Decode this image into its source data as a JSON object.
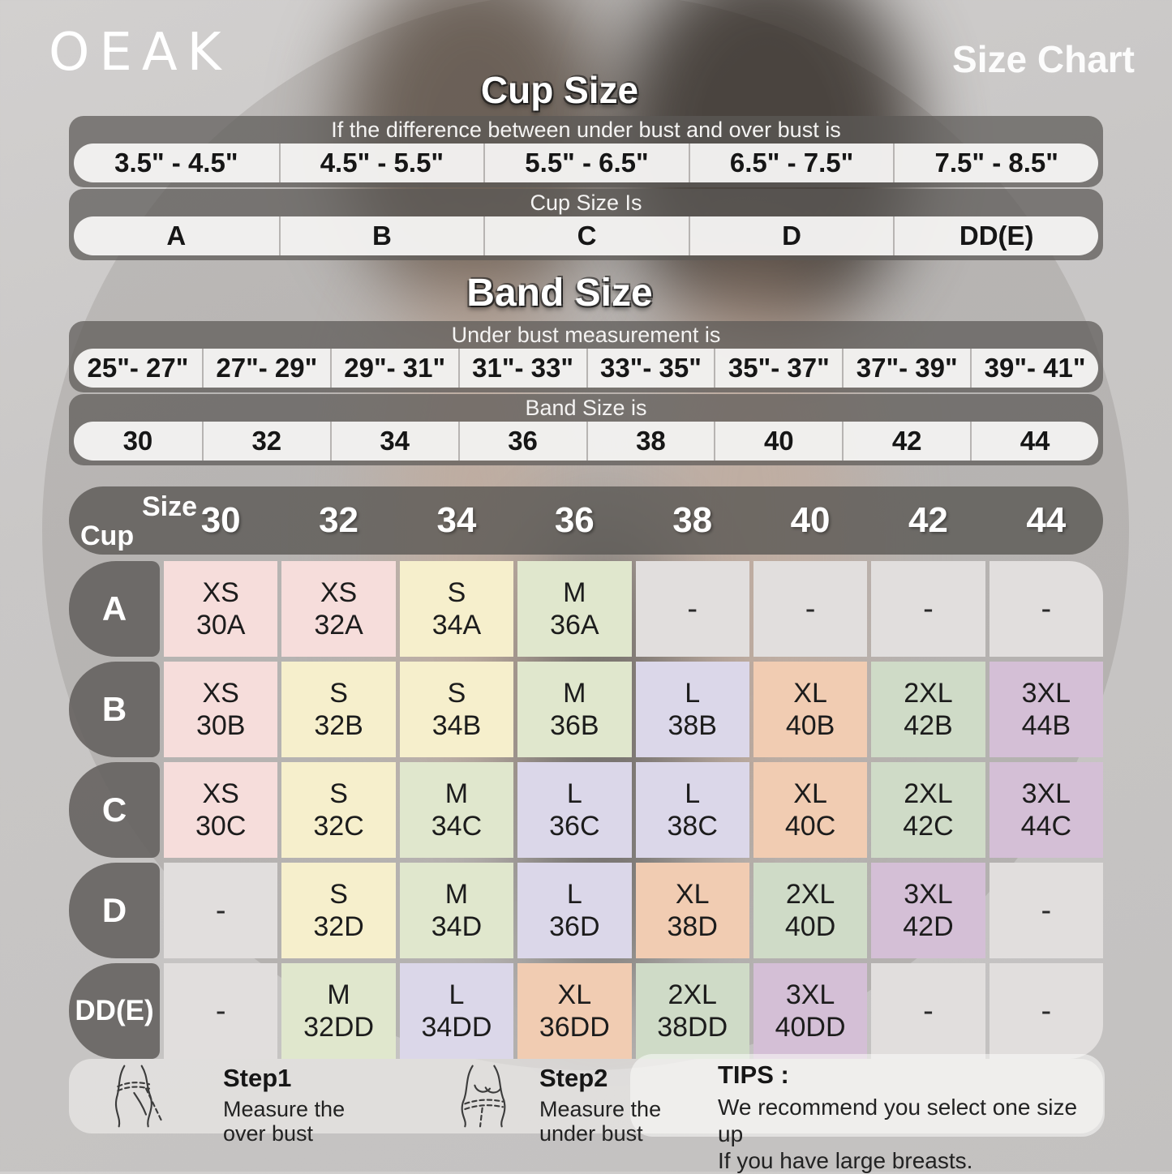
{
  "header": {
    "brand": "OEAK",
    "title": "Size Chart"
  },
  "cup_size": {
    "title": "Cup Size",
    "caption_ranges": "If the  difference between under bust and over bust is",
    "ranges": [
      "3.5\" - 4.5\"",
      "4.5\" - 5.5\"",
      "5.5\" - 6.5\"",
      "6.5\" - 7.5\"",
      "7.5\" - 8.5\""
    ],
    "caption_cups": "Cup Size Is",
    "cups": [
      "A",
      "B",
      "C",
      "D",
      "DD(E)"
    ]
  },
  "band_size": {
    "title": "Band Size",
    "caption_ranges": "Under bust measurement is",
    "ranges": [
      "25\"- 27\"",
      "27\"- 29\"",
      "29\"- 31\"",
      "31\"- 33\"",
      "33\"- 35\"",
      "35\"- 37\"",
      "37\"- 39\"",
      "39\"- 41\""
    ],
    "caption_bands": "Band Size is",
    "bands": [
      "30",
      "32",
      "34",
      "36",
      "38",
      "40",
      "42",
      "44"
    ]
  },
  "colors": {
    "pink": "#f6dddb",
    "yellow": "#f6efcc",
    "green": "#e0e7cd",
    "sage": "#cfdbc7",
    "lavender": "#dbd7e9",
    "peach": "#f1ccb2",
    "mauve": "#d4bfd6",
    "gray": "#e1dedd"
  },
  "matrix": {
    "corner_top": "Size",
    "corner_bottom": "Cup",
    "columns": [
      "30",
      "32",
      "34",
      "36",
      "38",
      "40",
      "42",
      "44"
    ],
    "rows": [
      {
        "cup": "A",
        "cells": [
          {
            "size": "XS",
            "code": "30A",
            "color": "pink"
          },
          {
            "size": "XS",
            "code": "32A",
            "color": "pink"
          },
          {
            "size": "S",
            "code": "34A",
            "color": "yellow"
          },
          {
            "size": "M",
            "code": "36A",
            "color": "green"
          },
          {
            "size": "-",
            "code": "",
            "color": "gray"
          },
          {
            "size": "-",
            "code": "",
            "color": "gray"
          },
          {
            "size": "-",
            "code": "",
            "color": "gray"
          },
          {
            "size": "-",
            "code": "",
            "color": "gray"
          }
        ]
      },
      {
        "cup": "B",
        "cells": [
          {
            "size": "XS",
            "code": "30B",
            "color": "pink"
          },
          {
            "size": "S",
            "code": "32B",
            "color": "yellow"
          },
          {
            "size": "S",
            "code": "34B",
            "color": "yellow"
          },
          {
            "size": "M",
            "code": "36B",
            "color": "green"
          },
          {
            "size": "L",
            "code": "38B",
            "color": "lavender"
          },
          {
            "size": "XL",
            "code": "40B",
            "color": "peach"
          },
          {
            "size": "2XL",
            "code": "42B",
            "color": "sage"
          },
          {
            "size": "3XL",
            "code": "44B",
            "color": "mauve"
          }
        ]
      },
      {
        "cup": "C",
        "cells": [
          {
            "size": "XS",
            "code": "30C",
            "color": "pink"
          },
          {
            "size": "S",
            "code": "32C",
            "color": "yellow"
          },
          {
            "size": "M",
            "code": "34C",
            "color": "green"
          },
          {
            "size": "L",
            "code": "36C",
            "color": "lavender"
          },
          {
            "size": "L",
            "code": "38C",
            "color": "lavender"
          },
          {
            "size": "XL",
            "code": "40C",
            "color": "peach"
          },
          {
            "size": "2XL",
            "code": "42C",
            "color": "sage"
          },
          {
            "size": "3XL",
            "code": "44C",
            "color": "mauve"
          }
        ]
      },
      {
        "cup": "D",
        "cells": [
          {
            "size": "-",
            "code": "",
            "color": "gray"
          },
          {
            "size": "S",
            "code": "32D",
            "color": "yellow"
          },
          {
            "size": "M",
            "code": "34D",
            "color": "green"
          },
          {
            "size": "L",
            "code": "36D",
            "color": "lavender"
          },
          {
            "size": "XL",
            "code": "38D",
            "color": "peach"
          },
          {
            "size": "2XL",
            "code": "40D",
            "color": "sage"
          },
          {
            "size": "3XL",
            "code": "42D",
            "color": "mauve"
          },
          {
            "size": "-",
            "code": "",
            "color": "gray"
          }
        ]
      },
      {
        "cup": "DD(E)",
        "cells": [
          {
            "size": "-",
            "code": "",
            "color": "gray"
          },
          {
            "size": "M",
            "code": "32DD",
            "color": "green"
          },
          {
            "size": "L",
            "code": "34DD",
            "color": "lavender"
          },
          {
            "size": "XL",
            "code": "36DD",
            "color": "peach"
          },
          {
            "size": "2XL",
            "code": "38DD",
            "color": "sage"
          },
          {
            "size": "3XL",
            "code": "40DD",
            "color": "mauve"
          },
          {
            "size": "-",
            "code": "",
            "color": "gray"
          },
          {
            "size": "-",
            "code": "",
            "color": "gray"
          }
        ]
      }
    ]
  },
  "footer": {
    "step1": {
      "title": "Step1",
      "line1": "Measure the",
      "line2": "over bust"
    },
    "step2": {
      "title": "Step2",
      "line1": "Measure the",
      "line2": "under bust"
    },
    "tips": {
      "title": "TIPS :",
      "line1": "We recommend you select one size up",
      "line2": "If you have large breasts."
    }
  }
}
